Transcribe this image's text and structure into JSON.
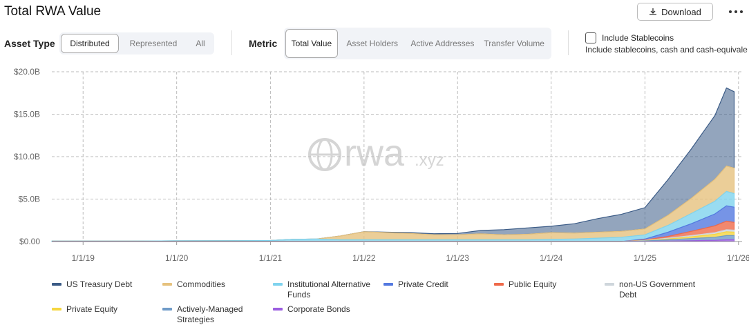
{
  "header": {
    "title": "Total RWA Value",
    "download": "Download"
  },
  "controls": {
    "asset_type": {
      "label": "Asset Type",
      "options": [
        "Distributed",
        "Represented",
        "All"
      ],
      "selected": "Distributed"
    },
    "metric": {
      "label": "Metric",
      "options": [
        "Total Value",
        "Asset Holders",
        "Active Addresses",
        "Transfer Volume"
      ],
      "selected": "Total Value"
    },
    "stablecoins": {
      "label": "Include Stablecoins",
      "description": "Include stablecoins, cash and cash-equivale"
    }
  },
  "chart_data": {
    "type": "stacked_area",
    "watermark": {
      "main": "rwa",
      "suffix": ".xyz"
    },
    "x": [
      "2018-09-01",
      "2019-01-01",
      "2019-07-01",
      "2020-01-01",
      "2020-07-01",
      "2021-01-01",
      "2021-04-01",
      "2021-07-01",
      "2021-10-01",
      "2022-01-01",
      "2022-04-01",
      "2022-07-01",
      "2022-10-01",
      "2023-01-01",
      "2023-04-01",
      "2023-07-01",
      "2023-10-01",
      "2024-01-01",
      "2024-04-01",
      "2024-07-01",
      "2024-10-01",
      "2025-01-01",
      "2025-04-01",
      "2025-07-01",
      "2025-10-01",
      "2025-11-15",
      "2025-12-15"
    ],
    "xlim": [
      "2018-09-01",
      "2026-01-15"
    ],
    "xticks": [
      {
        "value": "2019-01-01",
        "label": "1/1/19"
      },
      {
        "value": "2020-01-01",
        "label": "1/1/20"
      },
      {
        "value": "2021-01-01",
        "label": "1/1/21"
      },
      {
        "value": "2022-01-01",
        "label": "1/1/22"
      },
      {
        "value": "2023-01-01",
        "label": "1/1/23"
      },
      {
        "value": "2024-01-01",
        "label": "1/1/24"
      },
      {
        "value": "2025-01-01",
        "label": "1/1/25"
      },
      {
        "value": "2026-01-01",
        "label": "1/1/26"
      }
    ],
    "ylim": [
      0,
      20
    ],
    "yticks": [
      {
        "value": 0,
        "label": "$0.00"
      },
      {
        "value": 5,
        "label": "$5.0B"
      },
      {
        "value": 10,
        "label": "$10.0B"
      },
      {
        "value": 15,
        "label": "$15.0B"
      },
      {
        "value": 20,
        "label": "$20.0B"
      }
    ],
    "grid": true,
    "series": [
      {
        "name": "US Treasury Debt",
        "color": "#3b5b86",
        "values": [
          0,
          0,
          0,
          0,
          0,
          0,
          0,
          0,
          0,
          0.01,
          0.05,
          0.1,
          0.12,
          0.15,
          0.4,
          0.6,
          0.75,
          0.75,
          1.1,
          1.6,
          2.0,
          2.5,
          4.2,
          5.8,
          7.5,
          9.2,
          9.0
        ]
      },
      {
        "name": "Commodities",
        "color": "#e6c27e",
        "values": [
          0,
          0,
          0,
          0,
          0,
          0,
          0,
          0,
          0.45,
          0.95,
          0.85,
          0.75,
          0.6,
          0.6,
          0.7,
          0.6,
          0.65,
          0.8,
          0.7,
          0.7,
          0.7,
          0.7,
          1.2,
          1.8,
          2.6,
          3.0,
          3.0
        ]
      },
      {
        "name": "Institutional Alternative Funds",
        "color": "#7fd3ee",
        "values": [
          0.05,
          0.05,
          0.06,
          0.08,
          0.1,
          0.12,
          0.25,
          0.3,
          0.2,
          0.2,
          0.2,
          0.2,
          0.2,
          0.2,
          0.2,
          0.2,
          0.2,
          0.25,
          0.3,
          0.4,
          0.5,
          0.5,
          0.8,
          1.2,
          1.5,
          1.7,
          1.6
        ]
      },
      {
        "name": "Private Credit",
        "color": "#5479e0",
        "values": [
          0,
          0,
          0,
          0,
          0,
          0,
          0,
          0,
          0,
          0,
          0,
          0,
          0,
          0,
          0,
          0,
          0,
          0,
          0,
          0,
          0,
          0.1,
          0.5,
          0.9,
          1.4,
          1.8,
          1.8
        ]
      },
      {
        "name": "Public Equity",
        "color": "#ef6a4a",
        "values": [
          0,
          0,
          0,
          0,
          0,
          0,
          0,
          0,
          0,
          0,
          0,
          0,
          0,
          0,
          0,
          0,
          0,
          0,
          0,
          0,
          0,
          0.05,
          0.2,
          0.5,
          0.8,
          1.0,
          0.9
        ]
      },
      {
        "name": "non-US Government Debt",
        "color": "#cfd6dc",
        "values": [
          0,
          0,
          0,
          0,
          0,
          0,
          0,
          0,
          0,
          0,
          0,
          0,
          0,
          0,
          0,
          0,
          0,
          0,
          0,
          0,
          0,
          0.05,
          0.1,
          0.15,
          0.2,
          0.25,
          0.25
        ]
      },
      {
        "name": "Private Equity",
        "color": "#f5d640",
        "values": [
          0,
          0,
          0,
          0,
          0,
          0,
          0,
          0,
          0,
          0,
          0,
          0,
          0,
          0,
          0,
          0,
          0,
          0,
          0,
          0,
          0,
          0.02,
          0.1,
          0.2,
          0.35,
          0.45,
          0.4
        ]
      },
      {
        "name": "Actively-Managed Strategies",
        "color": "#6f9bc8",
        "values": [
          0,
          0,
          0,
          0,
          0,
          0,
          0,
          0,
          0,
          0,
          0,
          0,
          0,
          0,
          0,
          0,
          0,
          0,
          0,
          0,
          0,
          0.05,
          0.15,
          0.25,
          0.35,
          0.5,
          0.5
        ]
      },
      {
        "name": "Corporate Bonds",
        "color": "#9b5de0",
        "values": [
          0,
          0,
          0,
          0,
          0,
          0,
          0,
          0,
          0,
          0,
          0,
          0,
          0,
          0,
          0,
          0,
          0,
          0,
          0,
          0,
          0,
          0.02,
          0.05,
          0.1,
          0.15,
          0.2,
          0.2
        ]
      }
    ]
  }
}
